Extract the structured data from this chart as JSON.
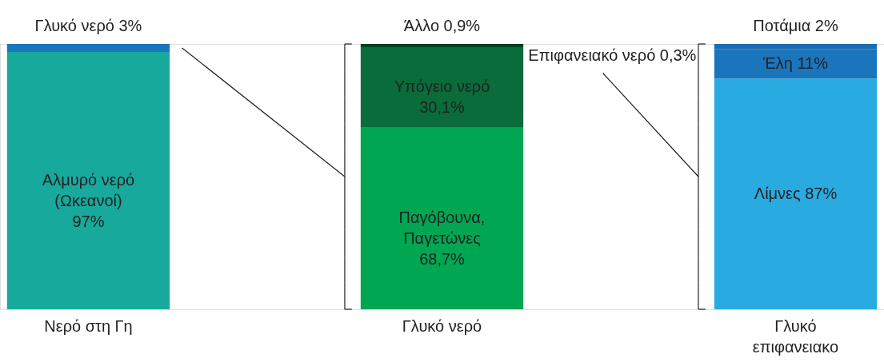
{
  "chart_data": {
    "type": "bar",
    "stacked": true,
    "categories": [
      "Νερό στη Γη",
      "Γλυκό νερό",
      "Γλυκό επιφανειακο"
    ],
    "series": [
      {
        "name": "Αλμυρό νερό (Ωκεανοί)",
        "color": "#17a99c",
        "values": [
          97,
          null,
          null
        ],
        "value_labels": [
          "97%",
          null,
          null
        ]
      },
      {
        "name": "Γλυκό νερό",
        "color": "#1b75bc",
        "values": [
          3,
          null,
          null
        ],
        "value_labels": [
          "3%",
          null,
          null
        ]
      },
      {
        "name": "Παγόβουνα, Παγετώνες",
        "color": "#00a651",
        "values": [
          null,
          68.7,
          null
        ],
        "value_labels": [
          null,
          "68,7%",
          null
        ]
      },
      {
        "name": "Υπόγειο νερό",
        "color": "#0a6b3b",
        "values": [
          null,
          30.1,
          null
        ],
        "value_labels": [
          null,
          "30,1%",
          null
        ]
      },
      {
        "name": "Επιφανειακό νερό",
        "color": "#024d28",
        "values": [
          null,
          0.3,
          null
        ],
        "value_labels": [
          null,
          "0,3%",
          null
        ]
      },
      {
        "name": "Άλλο",
        "color": "#003f1f",
        "values": [
          null,
          0.9,
          null
        ],
        "value_labels": [
          null,
          "0,9%",
          null
        ]
      },
      {
        "name": "Λίμνες",
        "color": "#29abe2",
        "values": [
          null,
          null,
          87
        ],
        "value_labels": [
          null,
          null,
          "87%"
        ]
      },
      {
        "name": "Έλη",
        "color": "#1b75bc",
        "values": [
          null,
          null,
          11
        ],
        "value_labels": [
          null,
          null,
          "11%"
        ]
      },
      {
        "name": "Ποτάμια",
        "color": "#1a6db3",
        "values": [
          null,
          null,
          2
        ],
        "value_labels": [
          null,
          null,
          "2%"
        ]
      }
    ]
  }
}
